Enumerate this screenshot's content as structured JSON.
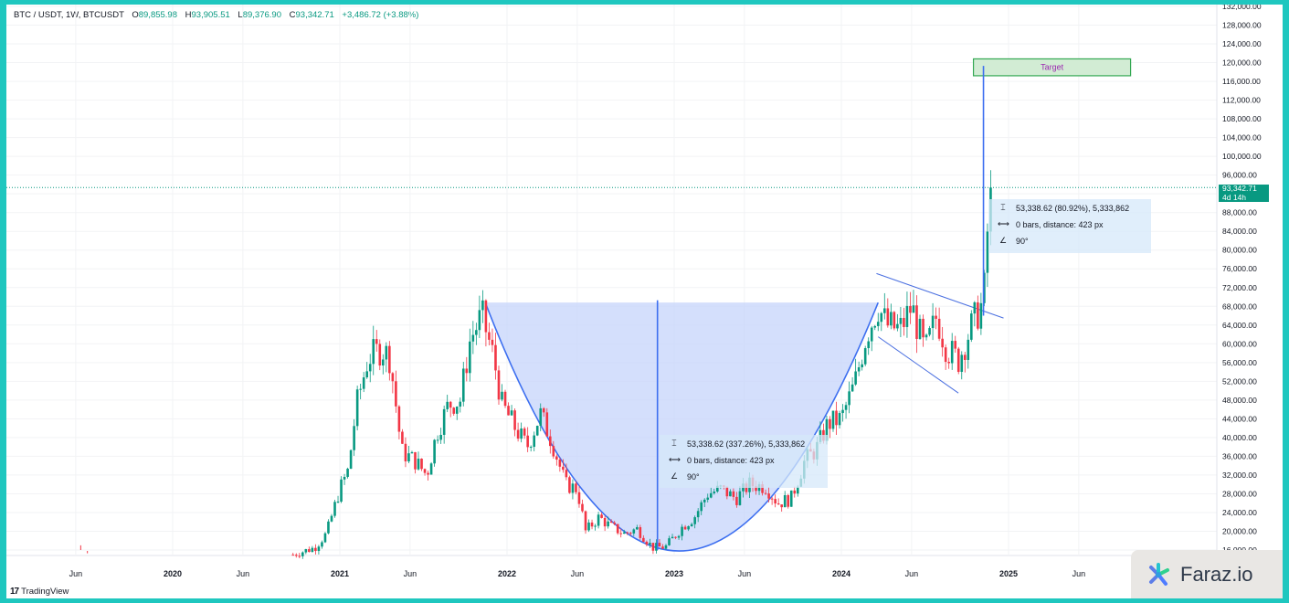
{
  "header": {
    "symbol": "BTC / USDT, 1W, BTCUSDT",
    "o_label": "O",
    "o": "89,855.98",
    "h_label": "H",
    "h": "93,905.51",
    "l_label": "L",
    "l": "89,376.90",
    "c_label": "C",
    "c": "93,342.71",
    "change": "+3,486.72 (+3.88%)"
  },
  "price_tag": {
    "price": "93,342.71",
    "countdown": "4d 14h"
  },
  "target_label": "Target",
  "measure_box_main": {
    "line1": "53,338.62 (337.26%), 5,333,862",
    "line2": "0 bars, distance: 423 px",
    "line3": "90°"
  },
  "measure_box_right": {
    "line1": "53,338.62 (80.92%), 5,333,862",
    "line2": "0 bars, distance: 423 px",
    "line3": "90°"
  },
  "footer": {
    "tradingview": "TradingView",
    "brand": "Faraz.io"
  },
  "colors": {
    "up": "#089981",
    "down": "#f23645",
    "pattern_fill": "#c6d4fb",
    "pattern_line": "#3d6ff0",
    "target_fill": "#d2ecd4",
    "target_border": "#34a853",
    "background": "#1fc7bf"
  },
  "chart_data": {
    "type": "candlestick",
    "symbol": "BTC / USDT",
    "interval": "1W",
    "y_axis_ticks": [
      16000,
      20000,
      24000,
      28000,
      32000,
      36000,
      40000,
      44000,
      48000,
      52000,
      56000,
      60000,
      64000,
      68000,
      72000,
      76000,
      80000,
      84000,
      88000,
      92000,
      96000,
      100000,
      104000,
      108000,
      112000,
      116000,
      120000,
      124000,
      128000,
      132000
    ],
    "y_axis_tick_labels": [
      "16,000.00",
      "20,000.00",
      "24,000.00",
      "28,000.00",
      "32,000.00",
      "36,000.00",
      "40,000.00",
      "44,000.00",
      "48,000.00",
      "52,000.00",
      "56,000.00",
      "60,000.00",
      "64,000.00",
      "68,000.00",
      "72,000.00",
      "76,000.00",
      "80,000.00",
      "84,000.00",
      "88,000.00",
      "92,000.00",
      "96,000.00",
      "100,000.00",
      "104,000.00",
      "108,000.00",
      "112,000.00",
      "116,000.00",
      "120,000.00",
      "124,000.00",
      "128,000.00",
      "132,000.00"
    ],
    "x_axis_labels": [
      {
        "label": "Jun",
        "t": 2019.42
      },
      {
        "label": "2020",
        "t": 2020.0
      },
      {
        "label": "Jun",
        "t": 2020.42
      },
      {
        "label": "2021",
        "t": 2021.0
      },
      {
        "label": "Jun",
        "t": 2021.42
      },
      {
        "label": "2022",
        "t": 2022.0
      },
      {
        "label": "Jun",
        "t": 2022.42
      },
      {
        "label": "2023",
        "t": 2023.0
      },
      {
        "label": "Jun",
        "t": 2023.42
      },
      {
        "label": "2024",
        "t": 2024.0
      },
      {
        "label": "Jun",
        "t": 2024.42
      },
      {
        "label": "2025",
        "t": 2025.0
      },
      {
        "label": "Jun",
        "t": 2025.42
      }
    ],
    "ylim": [
      14500,
      133000
    ],
    "xlim": [
      2019.03,
      2025.9
    ],
    "last_price": 93342.71,
    "close_path": [
      [
        2020.72,
        15000
      ],
      [
        2020.85,
        16500
      ],
      [
        2020.92,
        19500
      ],
      [
        2021.0,
        29000
      ],
      [
        2021.05,
        33000
      ],
      [
        2021.1,
        47000
      ],
      [
        2021.17,
        57000
      ],
      [
        2021.25,
        59000
      ],
      [
        2021.3,
        57000
      ],
      [
        2021.37,
        37000
      ],
      [
        2021.45,
        35000
      ],
      [
        2021.52,
        32000
      ],
      [
        2021.58,
        41000
      ],
      [
        2021.65,
        47000
      ],
      [
        2021.72,
        48000
      ],
      [
        2021.78,
        61000
      ],
      [
        2021.85,
        66000
      ],
      [
        2021.92,
        57000
      ],
      [
        2021.97,
        47000
      ],
      [
        2022.05,
        42000
      ],
      [
        2022.12,
        38000
      ],
      [
        2022.2,
        45000
      ],
      [
        2022.27,
        39000
      ],
      [
        2022.35,
        30000
      ],
      [
        2022.42,
        29000
      ],
      [
        2022.47,
        20000
      ],
      [
        2022.55,
        23000
      ],
      [
        2022.62,
        21000
      ],
      [
        2022.7,
        19500
      ],
      [
        2022.78,
        20500
      ],
      [
        2022.87,
        16500
      ],
      [
        2022.95,
        16700
      ],
      [
        2023.05,
        21000
      ],
      [
        2023.12,
        23000
      ],
      [
        2023.2,
        28000
      ],
      [
        2023.28,
        29000
      ],
      [
        2023.37,
        27000
      ],
      [
        2023.45,
        30000
      ],
      [
        2023.55,
        29500
      ],
      [
        2023.62,
        26000
      ],
      [
        2023.7,
        27000
      ],
      [
        2023.78,
        35000
      ],
      [
        2023.85,
        37500
      ],
      [
        2023.92,
        43000
      ],
      [
        2024.0,
        44000
      ],
      [
        2024.08,
        51500
      ],
      [
        2024.15,
        62000
      ],
      [
        2024.22,
        68000
      ],
      [
        2024.27,
        64000
      ],
      [
        2024.35,
        63000
      ],
      [
        2024.42,
        68000
      ],
      [
        2024.5,
        58000
      ],
      [
        2024.57,
        66000
      ],
      [
        2024.63,
        59000
      ],
      [
        2024.7,
        56500
      ],
      [
        2024.77,
        63000
      ],
      [
        2024.82,
        67000
      ],
      [
        2024.85,
        69000
      ],
      [
        2024.87,
        80000
      ],
      [
        2024.88,
        90000
      ],
      [
        2024.9,
        93342.71
      ]
    ],
    "annotations": {
      "cup_left": {
        "t": 2021.87,
        "price": 68800
      },
      "cup_right": {
        "t": 2024.22,
        "price": 68800
      },
      "cup_bottom": {
        "t": 2023.03,
        "price": 15800
      },
      "vertical_measure_main": {
        "t": 2022.9,
        "from": 16000,
        "to": 69300
      },
      "vertical_measure_right": {
        "t": 2024.85,
        "from": 66000,
        "to": 119300
      },
      "target_zone": {
        "t0": 2024.79,
        "t1": 2025.73,
        "p0": 117200,
        "p1": 120800
      },
      "flag_upper": [
        [
          2024.21,
          75000
        ],
        [
          2024.97,
          65500
        ]
      ],
      "flag_lower": [
        [
          2024.22,
          61500
        ],
        [
          2024.7,
          49500
        ]
      ],
      "last_price_line": 93342.71
    }
  }
}
